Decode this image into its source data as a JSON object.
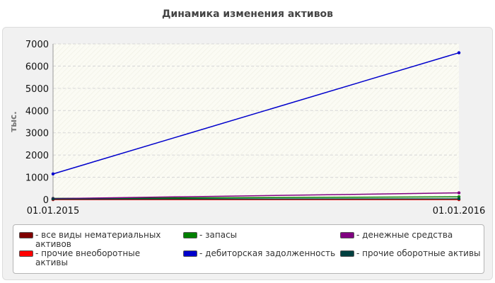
{
  "chart_data": {
    "type": "line",
    "title": "Динамика изменения активов",
    "ylabel": "тыс.",
    "x": [
      "01.01.2015",
      "01.01.2016"
    ],
    "ylim": [
      0,
      7000
    ],
    "yticks": [
      0,
      1000,
      2000,
      3000,
      4000,
      5000,
      6000,
      7000
    ],
    "grid": true,
    "legend_position": "bottom",
    "series": [
      {
        "name": "- все виды нематериальных активов",
        "color": "#800000",
        "values": [
          0,
          0
        ]
      },
      {
        "name": "- запасы",
        "color": "#008000",
        "values": [
          50,
          120
        ]
      },
      {
        "name": "- денежные средства",
        "color": "#800080",
        "values": [
          40,
          300
        ]
      },
      {
        "name": "- прочие внеоборотные активы",
        "color": "#ff0000",
        "values": [
          0,
          0
        ]
      },
      {
        "name": "- дебиторская задолженность",
        "color": "#0000cc",
        "values": [
          1150,
          6600
        ]
      },
      {
        "name": "- прочие оборотные активы",
        "color": "#004040",
        "values": [
          20,
          30
        ]
      }
    ]
  }
}
